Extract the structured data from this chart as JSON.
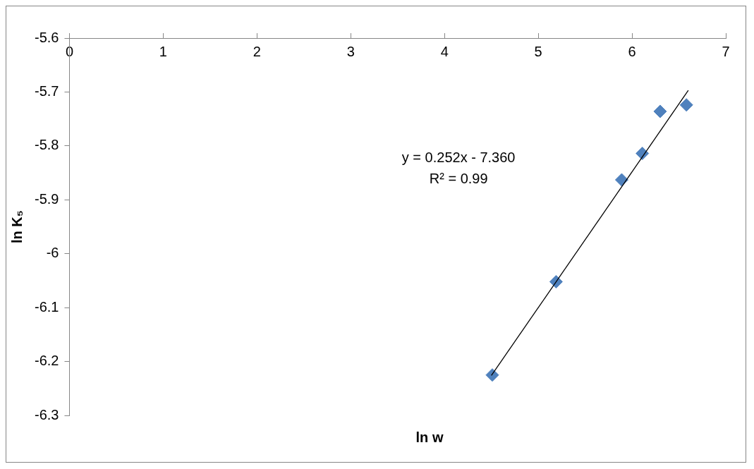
{
  "chart_data": {
    "type": "scatter",
    "xlabel": "ln w",
    "ylabel": "ln K₅",
    "xlim": [
      0,
      7
    ],
    "xticks": [
      0,
      1,
      2,
      3,
      4,
      5,
      6,
      7
    ],
    "ylim": [
      -6.3,
      -5.6
    ],
    "yticks": [
      -6.3,
      -6.2,
      -6.1,
      -6,
      -5.9,
      -5.8,
      -5.7,
      -5.6
    ],
    "grid": false,
    "legend": false,
    "marker": "diamond",
    "annotations": [
      "y = 0.252x - 7.360",
      "R² = 0.99"
    ],
    "series": [
      {
        "color": "#4f81bd",
        "x": [
          4.51,
          5.19,
          5.89,
          6.11,
          6.3,
          6.58
        ],
        "values": [
          -6.225,
          -6.052,
          -5.863,
          -5.814,
          -5.736,
          -5.724
        ]
      },
      {
        "type": "line",
        "color": "#000000",
        "marker": "none",
        "x": [
          4.5,
          6.6
        ],
        "values": [
          -6.226,
          -5.697
        ]
      }
    ]
  }
}
